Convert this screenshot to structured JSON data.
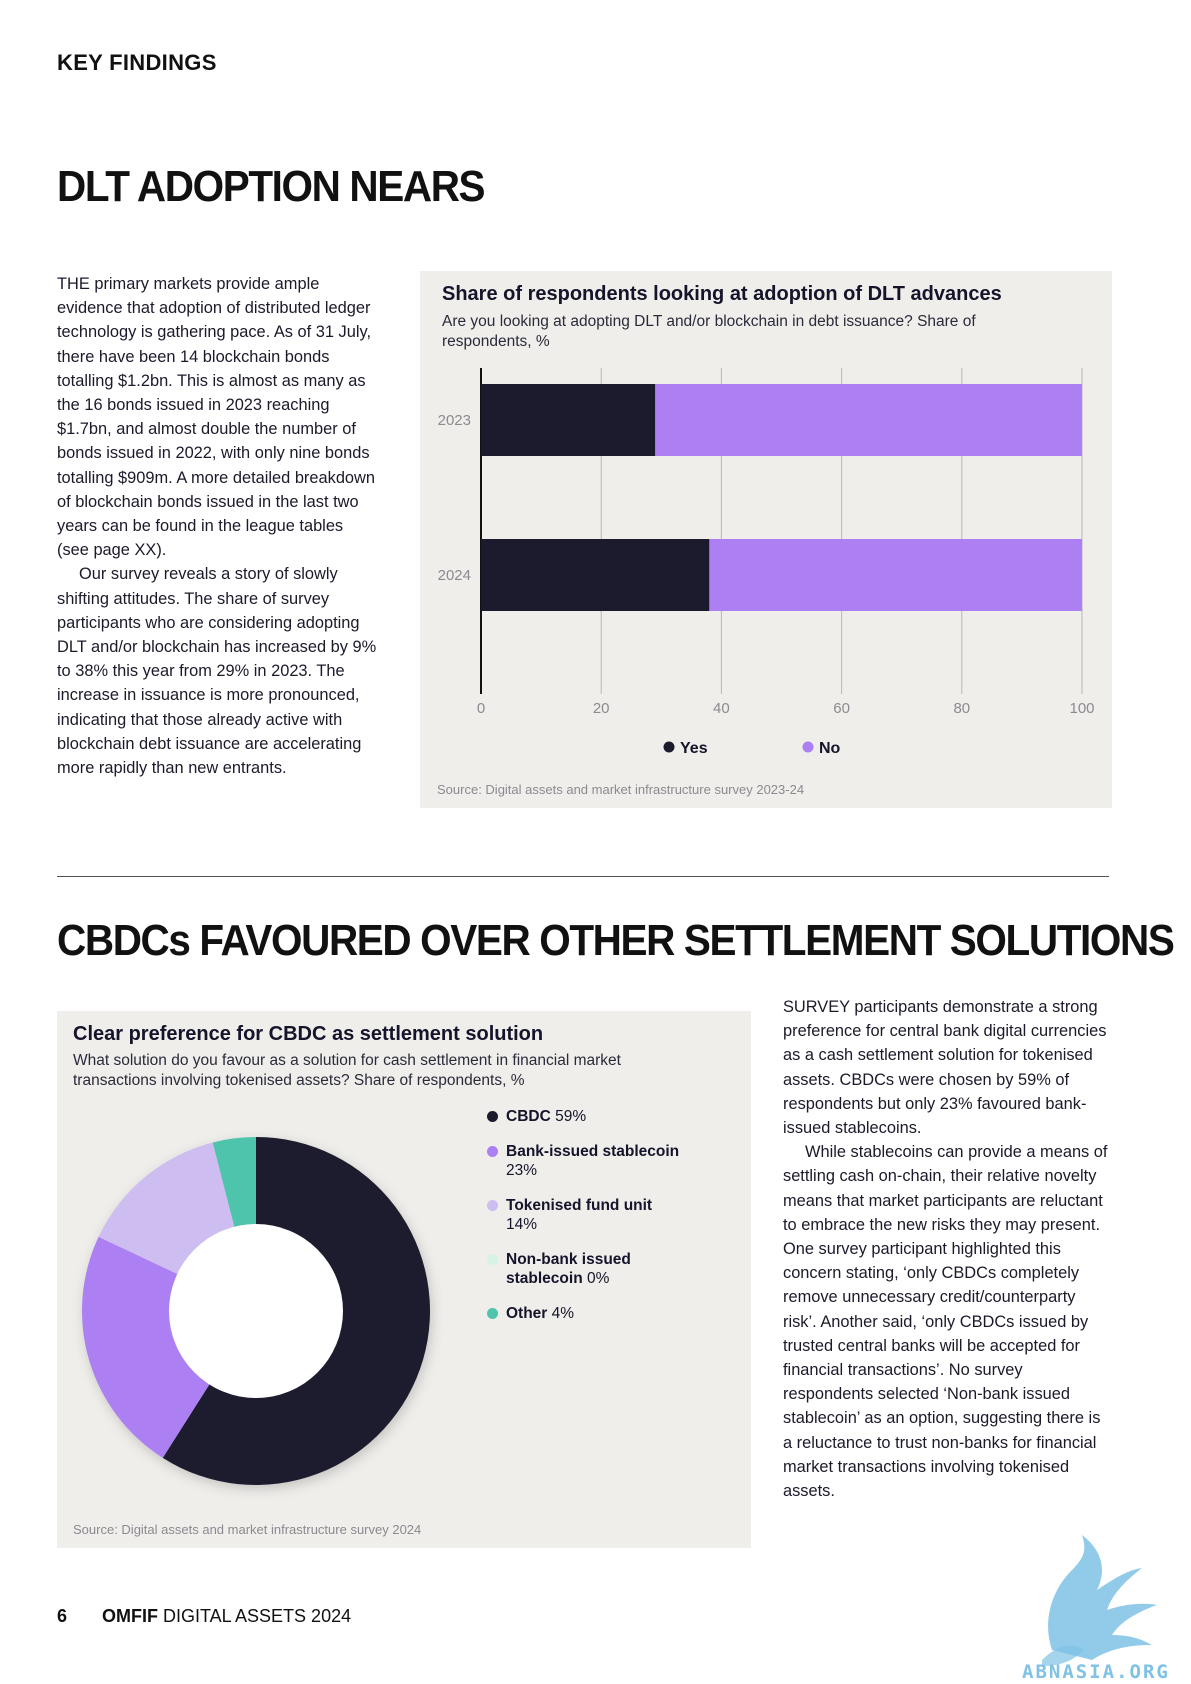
{
  "section_label": "KEY FINDINGS",
  "section1": {
    "headline": "DLT ADOPTION NEARS",
    "paragraphs": [
      "THE primary markets provide ample evidence that adoption of distributed ledger technology is gathering pace. As of 31 July, there have been 14 blockchain bonds totalling $1.2bn. This is almost as many as the 16 bonds issued in 2023 reaching $1.7bn, and almost double the number of bonds issued in 2022, with only nine bonds totalling $909m. A more detailed breakdown of blockchain bonds issued in the last two years can be found in the league tables (see page XX).",
      "Our survey reveals a story of slowly shifting attitudes. The share of survey participants who are considering adopting DLT and/or blockchain has increased by 9% to 38% this year from 29% in 2023. The increase in issuance is more pronounced, indicating that those already active with blockchain debt issuance are accelerating more rapidly than new entrants."
    ]
  },
  "chart1": {
    "title": "Share of respondents looking at adoption of DLT advances",
    "subtitle": "Are you looking at adopting DLT and/or blockchain in debt issuance? Share of respondents, %",
    "source": "Source: Digital assets and market infrastructure survey 2023-24"
  },
  "section2": {
    "headline": "CBDCs FAVOURED OVER OTHER SETTLEMENT SOLUTIONS",
    "paragraphs": [
      "SURVEY participants demonstrate a strong preference for central bank digital currencies as a cash settlement solution for tokenised assets. CBDCs were chosen by 59% of respondents but only 23% favoured bank-issued stablecoins.",
      "While stablecoins can provide a means of settling cash on-chain, their relative novelty means that market participants are reluctant to embrace the new risks they may present. One survey participant highlighted this concern stating, ‘only CBDCs completely remove unnecessary credit/counterparty risk’. Another said, ‘only CBDCs issued by trusted central banks will be accepted for financial transactions’. No survey respondents selected ‘Non-bank issued stablecoin’ as an option, suggesting there is a reluctance to trust non-banks for financial market transactions involving tokenised assets."
    ]
  },
  "chart2": {
    "title": "Clear preference for CBDC as settlement solution",
    "subtitle": "What solution do you favour as a solution for cash settlement in financial market transactions involving tokenised assets? Share of respondents, %",
    "source": "Source: Digital assets and market infrastructure survey 2024",
    "legend": [
      {
        "name": "CBDC",
        "value_label": "59%"
      },
      {
        "name": "Bank-issued stablecoin",
        "value_label": "23%"
      },
      {
        "name": "Tokenised fund unit",
        "value_label": "14%"
      },
      {
        "name": "Non-bank issued stablecoin",
        "value_label": "0%"
      },
      {
        "name": "Other",
        "value_label": "4%"
      }
    ]
  },
  "chart_data": [
    {
      "type": "bar",
      "orientation": "horizontal",
      "stacked": true,
      "title": "Share of respondents looking at adoption of DLT advances",
      "subtitle": "Are you looking at adopting DLT and/or blockchain in debt issuance? Share of respondents, %",
      "categories": [
        "2023",
        "2024"
      ],
      "series": [
        {
          "name": "Yes",
          "values": [
            29,
            38
          ],
          "color": "#1c1b2e"
        },
        {
          "name": "No",
          "values": [
            71,
            62
          ],
          "color": "#ac80f2"
        }
      ],
      "xlim": [
        0,
        100
      ],
      "xticks": [
        "0",
        "20",
        "40",
        "60",
        "80",
        "100"
      ],
      "grid": true,
      "legend": "bottom-center"
    },
    {
      "type": "pie",
      "donut": true,
      "title": "Clear preference for CBDC as settlement solution",
      "subtitle": "What solution do you favour as a solution for cash settlement in financial market transactions involving tokenised assets? Share of respondents, %",
      "categories": [
        "CBDC",
        "Bank-issued stablecoin",
        "Tokenised fund unit",
        "Non-bank issued stablecoin",
        "Other"
      ],
      "values": [
        59,
        23,
        14,
        0,
        4
      ],
      "colors": [
        "#1c1b2e",
        "#ac80f2",
        "#cdbdf1",
        "#d6f3e6",
        "#4fc4ad"
      ],
      "legend": "right"
    }
  ],
  "footer": {
    "page_number": "6",
    "brand_bold": "OMFIF",
    "brand_rest": "DIGITAL ASSETS 2024"
  },
  "watermark": {
    "text": "ABNASIA.ORG",
    "color": "#7fc2e6"
  }
}
